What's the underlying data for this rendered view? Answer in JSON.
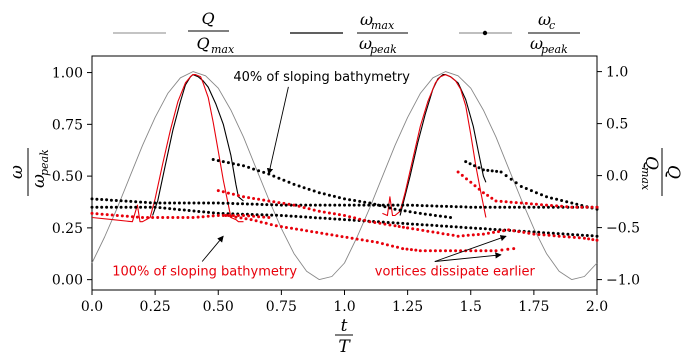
{
  "chart_data": {
    "type": "line",
    "x_ticks": [
      "0.0",
      "0.25",
      "0.50",
      "0.75",
      "1.0",
      "1.25",
      "1.5",
      "1.75",
      "2.0"
    ],
    "y_left_ticks": [
      "0.00",
      "0.25",
      "0.50",
      "0.75",
      "1.00"
    ],
    "y_right_ticks": [
      "−1.0",
      "−0.5",
      "0.0",
      "0.5",
      "1.0"
    ],
    "xlim": [
      0,
      2
    ],
    "ylim_left": [
      -0.05,
      1.08
    ],
    "ylim_right": [
      -1.1,
      1.15
    ],
    "xlabel": {
      "num": "t",
      "den": "T"
    },
    "ylabel_left": {
      "num": "ω",
      "den": "ω",
      "den_sub": "peak"
    },
    "ylabel_right": {
      "num": "Q",
      "den": "Q",
      "den_sub": "max"
    },
    "legend": [
      {
        "num": "Q",
        "den": "Q",
        "den_sub": "max",
        "style": "gray-line"
      },
      {
        "num": "ω",
        "num_sub": "max",
        "den": "ω",
        "den_sub": "peak",
        "style": "black-line"
      },
      {
        "num": "ω",
        "num_sub": "c",
        "den": "ω",
        "den_sub": "peak",
        "style": "dotted-marker"
      }
    ],
    "annotations": [
      {
        "text": "40% of sloping bathymetry",
        "color": "#000000",
        "xy": [
          0.7,
          0.51
        ],
        "xytext": [
          0.56,
          0.96
        ]
      },
      {
        "text": "100% of sloping bathymetry",
        "color": "#e8000b",
        "xy": [
          0.52,
          0.21
        ],
        "xytext": [
          0.08,
          0.02
        ]
      },
      {
        "text": "vortices dissipate earlier",
        "color": "#e8000b",
        "xy": [
          [
            1.62,
            0.12
          ],
          [
            1.64,
            0.21
          ]
        ],
        "xytext": [
          1.12,
          0.02
        ]
      }
    ],
    "series": [
      {
        "color": "#888888",
        "kind": "line",
        "axis": "right",
        "x": [
          0,
          0.05,
          0.1,
          0.15,
          0.2,
          0.25,
          0.3,
          0.35,
          0.4,
          0.45,
          0.5,
          0.55,
          0.6,
          0.65,
          0.7,
          0.75,
          0.8,
          0.85,
          0.9,
          0.95,
          1.0,
          1.05,
          1.1,
          1.15,
          1.2,
          1.25,
          1.3,
          1.35,
          1.4,
          1.45,
          1.5,
          1.55,
          1.6,
          1.65,
          1.7,
          1.75,
          1.8,
          1.85,
          1.9,
          1.95,
          2.0
        ],
        "y": [
          -0.84,
          -0.59,
          -0.31,
          -0.01,
          0.29,
          0.56,
          0.79,
          0.94,
          1.0,
          0.96,
          0.84,
          0.63,
          0.37,
          0.07,
          -0.23,
          -0.51,
          -0.75,
          -0.92,
          -1.0,
          -0.97,
          -0.84,
          -0.59,
          -0.31,
          -0.01,
          0.29,
          0.56,
          0.79,
          0.94,
          1.0,
          0.96,
          0.84,
          0.63,
          0.37,
          0.07,
          -0.23,
          -0.51,
          -0.75,
          -0.92,
          -1.0,
          -0.97,
          -0.84
        ]
      },
      {
        "color": "#000000",
        "kind": "line",
        "axis": "left",
        "x": [
          0.24,
          0.26,
          0.29,
          0.32,
          0.35,
          0.37,
          0.39,
          0.4,
          0.42,
          0.44,
          0.46,
          0.49,
          0.52,
          0.55,
          0.57,
          0.58,
          0.6
        ],
        "y": [
          0.31,
          0.38,
          0.55,
          0.72,
          0.86,
          0.94,
          0.98,
          0.99,
          0.98,
          0.96,
          0.93,
          0.85,
          0.75,
          0.6,
          0.46,
          0.4,
          0.38
        ]
      },
      {
        "color": "#000000",
        "kind": "line",
        "axis": "left",
        "x": [
          1.22,
          1.26,
          1.29,
          1.32,
          1.35,
          1.37,
          1.39,
          1.4,
          1.42,
          1.45,
          1.48,
          1.51,
          1.53,
          1.55,
          1.56
        ],
        "y": [
          0.31,
          0.5,
          0.66,
          0.8,
          0.92,
          0.97,
          0.99,
          0.99,
          0.98,
          0.95,
          0.87,
          0.74,
          0.62,
          0.5,
          0.47
        ]
      },
      {
        "color": "#e8000b",
        "kind": "line",
        "axis": "left",
        "x": [
          0.0,
          0.08,
          0.16,
          0.18,
          0.19,
          0.2,
          0.23,
          0.25,
          0.28,
          0.31,
          0.34,
          0.37,
          0.39,
          0.4,
          0.41,
          0.43,
          0.44,
          0.46,
          0.48,
          0.5,
          0.52,
          0.54,
          0.55,
          0.57,
          0.58,
          0.6
        ],
        "y": [
          0.3,
          0.29,
          0.28,
          0.36,
          0.28,
          0.28,
          0.3,
          0.39,
          0.56,
          0.72,
          0.86,
          0.95,
          0.98,
          0.99,
          0.99,
          0.98,
          0.95,
          0.88,
          0.76,
          0.62,
          0.48,
          0.36,
          0.3,
          0.29,
          0.28,
          0.28
        ]
      },
      {
        "color": "#e8000b",
        "kind": "line",
        "axis": "left",
        "x": [
          1.15,
          1.17,
          1.18,
          1.19,
          1.2,
          1.22,
          1.24,
          1.27,
          1.3,
          1.33,
          1.36,
          1.38,
          1.4,
          1.42,
          1.44,
          1.46,
          1.48,
          1.5,
          1.52,
          1.54,
          1.55,
          1.56
        ],
        "y": [
          0.32,
          0.31,
          0.4,
          0.31,
          0.31,
          0.33,
          0.42,
          0.58,
          0.74,
          0.86,
          0.95,
          0.98,
          0.99,
          0.98,
          0.96,
          0.92,
          0.84,
          0.7,
          0.55,
          0.42,
          0.36,
          0.3
        ]
      },
      {
        "color": "#000000",
        "kind": "dots",
        "axis": "left",
        "x": [
          0.0,
          0.25,
          0.5,
          0.75,
          1.0,
          1.25,
          1.5,
          1.75,
          2.0
        ],
        "y": [
          0.39,
          0.37,
          0.37,
          0.36,
          0.36,
          0.36,
          0.35,
          0.35,
          0.35
        ]
      },
      {
        "color": "#000000",
        "kind": "dots",
        "axis": "left",
        "x": [
          0.0,
          0.25,
          0.5,
          0.75,
          1.0,
          1.25,
          1.5,
          1.75,
          2.0
        ],
        "y": [
          0.35,
          0.35,
          0.32,
          0.31,
          0.29,
          0.27,
          0.25,
          0.23,
          0.21
        ]
      },
      {
        "color": "#000000",
        "kind": "dots",
        "axis": "left",
        "x": [
          0.48,
          0.6,
          0.7,
          0.8,
          0.9,
          1.0,
          1.1,
          1.2,
          1.3,
          1.42
        ],
        "y": [
          0.58,
          0.55,
          0.51,
          0.46,
          0.42,
          0.39,
          0.37,
          0.34,
          0.32,
          0.3
        ]
      },
      {
        "color": "#000000",
        "kind": "dots",
        "axis": "left",
        "x": [
          1.48,
          1.55,
          1.62,
          1.7,
          1.8,
          1.9,
          2.0
        ],
        "y": [
          0.57,
          0.53,
          0.52,
          0.45,
          0.4,
          0.37,
          0.34
        ]
      },
      {
        "color": "#e8000b",
        "kind": "dots",
        "axis": "left",
        "x": [
          0.0,
          0.1,
          0.2,
          0.3,
          0.4,
          0.5,
          0.6,
          0.7
        ],
        "y": [
          0.32,
          0.31,
          0.3,
          0.3,
          0.3,
          0.31,
          0.31,
          0.3
        ]
      },
      {
        "color": "#e8000b",
        "kind": "dots",
        "axis": "left",
        "x": [
          0.5,
          0.6,
          0.7,
          0.8,
          0.9,
          1.0,
          1.1,
          1.2,
          1.25
        ],
        "y": [
          0.43,
          0.4,
          0.38,
          0.36,
          0.33,
          0.31,
          0.28,
          0.26,
          0.25
        ]
      },
      {
        "color": "#e8000b",
        "kind": "dots",
        "axis": "left",
        "x": [
          0.53,
          0.63,
          0.73,
          0.83,
          0.93,
          1.03,
          1.13,
          1.23,
          1.3,
          1.4,
          1.5,
          1.6,
          1.67
        ],
        "y": [
          0.31,
          0.29,
          0.26,
          0.24,
          0.22,
          0.2,
          0.18,
          0.15,
          0.14,
          0.14,
          0.14,
          0.14,
          0.15
        ]
      },
      {
        "color": "#e8000b",
        "kind": "dots",
        "axis": "left",
        "x": [
          1.25,
          1.35,
          1.45,
          1.55,
          1.65,
          1.75,
          1.85,
          1.95,
          2.0
        ],
        "y": [
          0.25,
          0.23,
          0.21,
          0.22,
          0.24,
          0.22,
          0.21,
          0.2,
          0.19
        ]
      },
      {
        "color": "#e8000b",
        "kind": "dots",
        "axis": "left",
        "x": [
          1.45,
          1.5,
          1.55,
          1.6,
          1.7,
          1.8,
          1.9,
          2.0
        ],
        "y": [
          0.52,
          0.47,
          0.42,
          0.38,
          0.37,
          0.36,
          0.35,
          0.35
        ]
      }
    ]
  }
}
